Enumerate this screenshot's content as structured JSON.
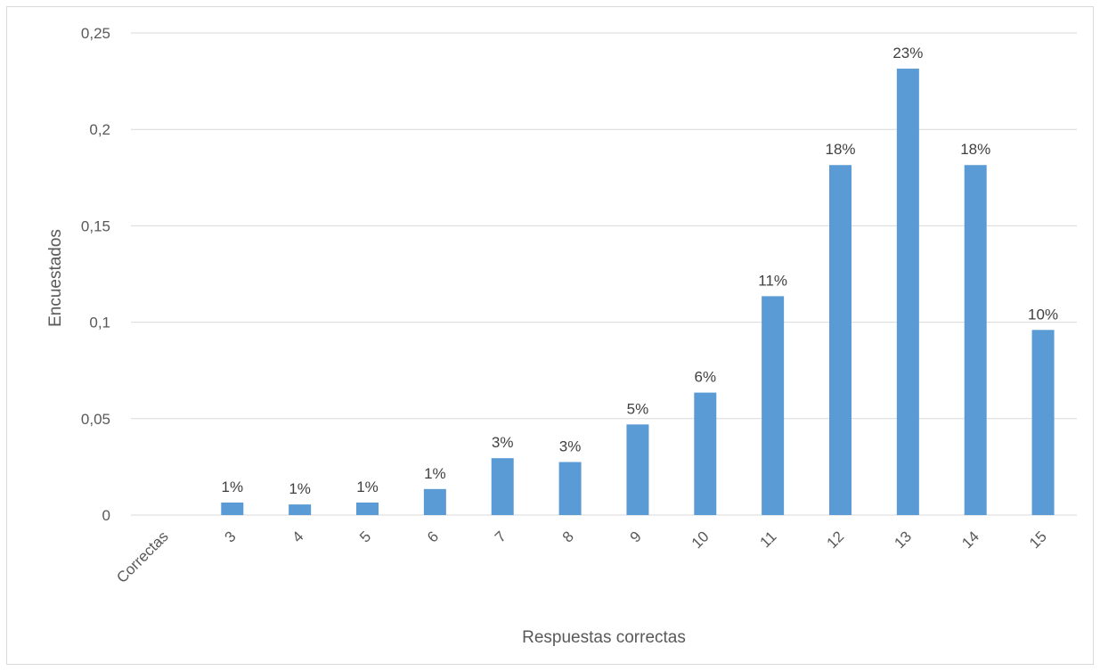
{
  "chart_data": {
    "type": "bar",
    "categories": [
      "Correctas",
      "3",
      "4",
      "5",
      "6",
      "7",
      "8",
      "9",
      "10",
      "11",
      "12",
      "13",
      "14",
      "15"
    ],
    "values": [
      null,
      0.0065,
      0.0055,
      0.0065,
      0.0135,
      0.0295,
      0.0275,
      0.047,
      0.0635,
      0.1135,
      0.1815,
      0.2315,
      0.1815,
      0.096
    ],
    "data_labels": [
      "",
      "1%",
      "1%",
      "1%",
      "1%",
      "3%",
      "3%",
      "5%",
      "6%",
      "11%",
      "18%",
      "23%",
      "18%",
      "10%"
    ],
    "y_ticks": [
      "0",
      "0,05",
      "0,1",
      "0,15",
      "0,2",
      "0,25"
    ],
    "y_tick_values": [
      0,
      0.05,
      0.1,
      0.15,
      0.2,
      0.25
    ],
    "xlabel": "Respuestas correctas",
    "ylabel": "Encuestados",
    "ylim": [
      0,
      0.25
    ],
    "grid": true,
    "legend": "none",
    "bar_color": "#5b9bd5",
    "grid_color": "#d9d9d9"
  }
}
